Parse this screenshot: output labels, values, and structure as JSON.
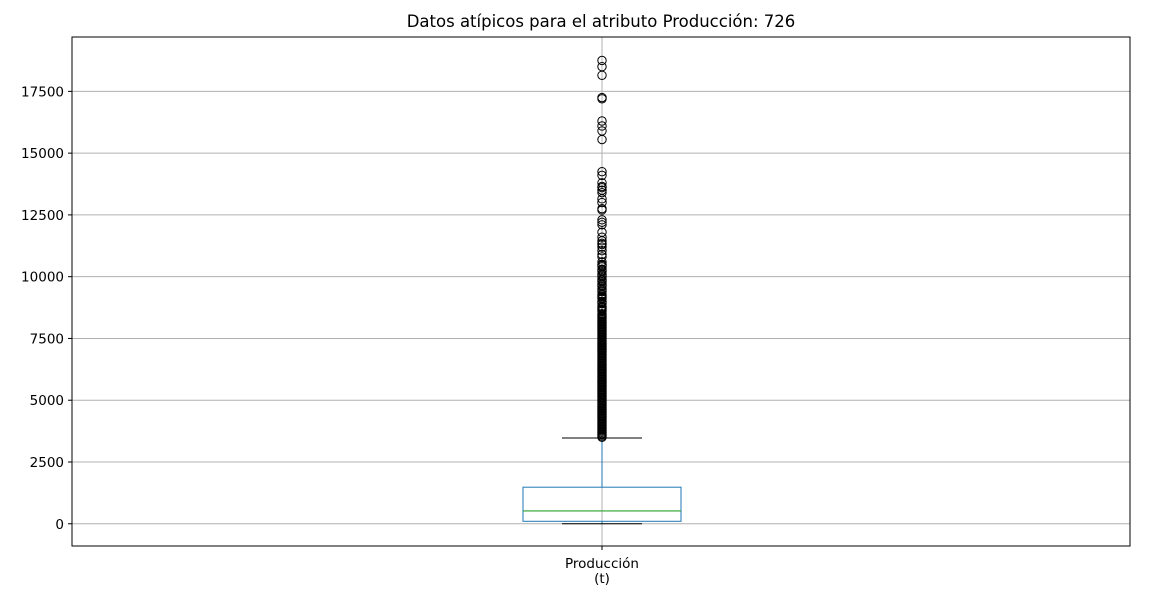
{
  "chart_data": {
    "type": "boxplot",
    "title": "Datos atípicos para el atributo Producción: 726",
    "categories": [
      "Producción\n(t)"
    ],
    "category_lines": [
      "Producción",
      "(t)"
    ],
    "ylim": [
      -900,
      19700
    ],
    "yticks": [
      0,
      2500,
      5000,
      7500,
      10000,
      12500,
      15000,
      17500
    ],
    "ytick_labels": [
      "0",
      "2500",
      "5000",
      "7500",
      "10000",
      "12500",
      "15000",
      "17500"
    ],
    "grid": true,
    "box": {
      "whisker_low": 0,
      "q1": 100,
      "median": 520,
      "q3": 1480,
      "whisker_high": 3470
    },
    "outliers": [
      18750,
      18500,
      18150,
      17250,
      17200,
      16300,
      16100,
      15900,
      15550,
      14250,
      14100,
      13800,
      13650,
      13600,
      13500,
      13400,
      13150,
      13000,
      12750,
      12700,
      12300,
      12200,
      12100,
      11800,
      11600,
      11450,
      11350,
      11300,
      11200,
      11050,
      10900,
      10800,
      10600,
      10500,
      10450,
      10400,
      10300,
      10250,
      10200,
      10100,
      10050,
      10000,
      9900,
      9850,
      9800,
      9700,
      9650,
      9600,
      9500,
      9450,
      9400,
      9300,
      9250,
      9200,
      9150,
      9100,
      9000,
      8950,
      8900,
      8800,
      8750,
      8700,
      8650,
      8600,
      8500,
      8450,
      8400,
      8350,
      8300,
      8250,
      8200,
      8150,
      8100,
      8050,
      8000,
      7950,
      7900,
      7850,
      7800,
      7750,
      7700,
      7650,
      7600,
      7550,
      7500,
      7450,
      7400,
      7350,
      7300,
      7250,
      7200,
      7150,
      7100,
      7050,
      7000,
      6950,
      6900,
      6850,
      6800,
      6750,
      6700,
      6650,
      6600,
      6550,
      6500,
      6450,
      6400,
      6350,
      6300,
      6250,
      6200,
      6150,
      6100,
      6050,
      6000,
      5950,
      5900,
      5850,
      5800,
      5750,
      5700,
      5650,
      5600,
      5550,
      5500,
      5450,
      5400,
      5350,
      5300,
      5250,
      5200,
      5150,
      5100,
      5050,
      5000,
      4950,
      4900,
      4850,
      4800,
      4750,
      4700,
      4650,
      4600,
      4550,
      4500,
      4450,
      4400,
      4350,
      4300,
      4250,
      4200,
      4150,
      4100,
      4050,
      4000,
      3950,
      3900,
      3850,
      3800,
      3750,
      3700,
      3650,
      3600,
      3550,
      3500
    ]
  },
  "colors": {
    "box": "#1f77b4",
    "median": "#2ca02c",
    "whisker_cap": "#000000",
    "grid": "#b0b0b0",
    "axes": "#000000",
    "outlier_edge": "#000000"
  }
}
